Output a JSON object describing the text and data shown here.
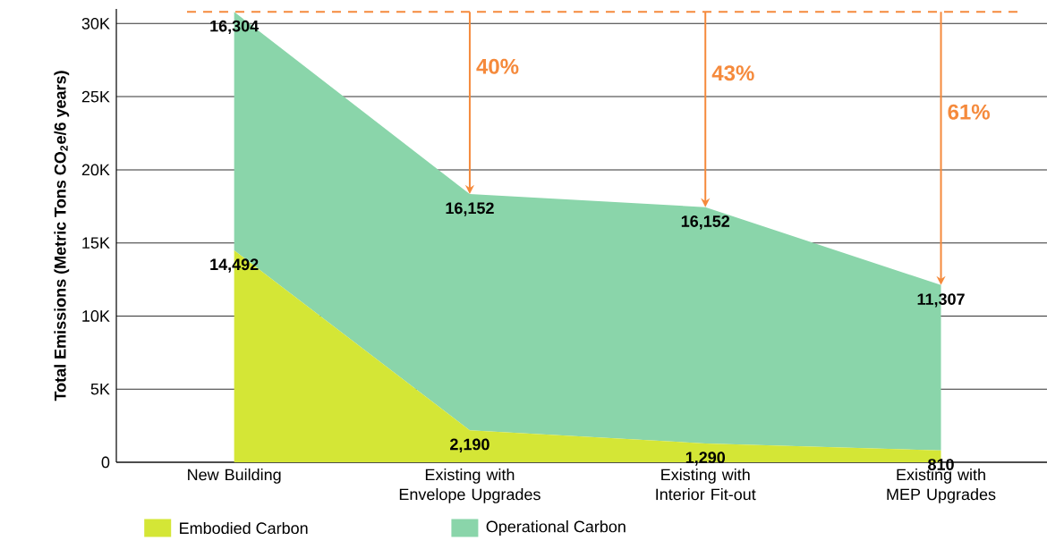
{
  "chart_data": {
    "type": "area",
    "stacked": true,
    "ylabel": "Total Emissions (Metric Tons CO$_{2}$e/6 years)",
    "categories": [
      "New Building",
      "Existing with Envelope Upgrades",
      "Existing with Interior Fit-out",
      "Existing with MEP Upgrades"
    ],
    "series": [
      {
        "name": "Embodied Carbon",
        "color": "#d4e636",
        "values": [
          14492,
          2190,
          1290,
          810
        ],
        "value_labels": [
          "14,492",
          "2,190",
          "1,290",
          "810"
        ]
      },
      {
        "name": "Operational  Carbon",
        "color": "#8ad5aa",
        "values": [
          16304,
          16152,
          16152,
          11307
        ],
        "value_labels": [
          "16,304",
          "16,152",
          "16,152",
          "11,307"
        ]
      }
    ],
    "ylim": [
      0,
      31000
    ],
    "yticks": [
      0,
      {
        "value": 5000,
        "label": "5K"
      },
      {
        "value": 10000,
        "label": "10K"
      },
      {
        "value": 15000,
        "label": "15K"
      },
      {
        "value": 20000,
        "label": "20K"
      },
      {
        "value": 25000,
        "label": "25K"
      },
      {
        "value": 30000,
        "label": "30K"
      }
    ],
    "grid": "y",
    "legend": "bottom",
    "ref_lines": [
      {
        "axis": "y",
        "value": 30796,
        "color": "#f58a3c",
        "line_style": "dashed"
      }
    ],
    "annotations": [
      "40%",
      "43%",
      "61%"
    ]
  }
}
